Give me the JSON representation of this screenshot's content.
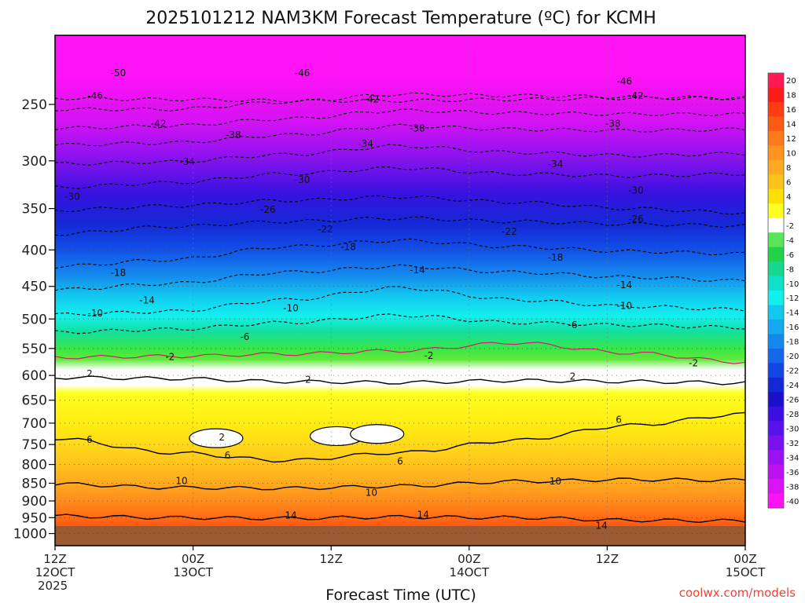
{
  "chart_data": {
    "type": "heatmap",
    "title": "2025101212 NAM3KM Forecast Temperature (ºC) for KCMH",
    "xlabel": "Forecast Time (UTC)",
    "ylabel": "",
    "credit": "coolwx.com/models",
    "y_scale": "log-pressure (hPa)",
    "ylim": [
      1040,
      200
    ],
    "xlim_hours": [
      0,
      60
    ],
    "y_ticks": [
      250,
      300,
      350,
      400,
      450,
      500,
      550,
      600,
      650,
      700,
      750,
      800,
      850,
      900,
      950,
      1000
    ],
    "x_ticks": [
      {
        "hour": 0,
        "line1": "12Z",
        "line2": "12OCT",
        "line3": "2025"
      },
      {
        "hour": 12,
        "line1": "00Z",
        "line2": "13OCT",
        "line3": ""
      },
      {
        "hour": 24,
        "line1": "12Z",
        "line2": "",
        "line3": ""
      },
      {
        "hour": 36,
        "line1": "00Z",
        "line2": "14OCT",
        "line3": ""
      },
      {
        "hour": 48,
        "line1": "12Z",
        "line2": "",
        "line3": ""
      },
      {
        "hour": 60,
        "line1": "00Z",
        "line2": "15OCT",
        "line3": ""
      }
    ],
    "colorbar": {
      "labels": [
        "20",
        "18",
        "16",
        "14",
        "12",
        "10",
        "8",
        "6",
        "4",
        "2",
        "-2",
        "-4",
        "-6",
        "-8",
        "-10",
        "-12",
        "-14",
        "-16",
        "-18",
        "-20",
        "-22",
        "-24",
        "-26",
        "-28",
        "-30",
        "-32",
        "-34",
        "-36",
        "-38",
        "-40"
      ],
      "colors": [
        "#ff1a55",
        "#ff1a1a",
        "#ff3d12",
        "#ff5a14",
        "#ff7a1a",
        "#ff951f",
        "#ffaa22",
        "#ffc21a",
        "#ffe000",
        "#ffff22",
        "#ffffff",
        "#5ae65a",
        "#22d24a",
        "#15d890",
        "#10e0c8",
        "#12f0ee",
        "#12c8f0",
        "#14a8f0",
        "#1488ee",
        "#1466ea",
        "#1046e6",
        "#1428d6",
        "#1a10cc",
        "#3a10e2",
        "#5812ee",
        "#7a12f0",
        "#9a12f2",
        "#bc12f2",
        "#dc12f4",
        "#ff12f6"
      ]
    },
    "series": [
      {
        "name": "-50 isotherm",
        "level": -50,
        "values": [
          245,
          246,
          247,
          247,
          246,
          245,
          245
        ]
      },
      {
        "name": "-46 isotherm",
        "level": -46,
        "values": [
          254,
          254,
          248,
          242,
          243,
          244,
          245
        ]
      },
      {
        "name": "-42 isotherm",
        "level": -42,
        "values": [
          270,
          268,
          262,
          255,
          257,
          258,
          258
        ]
      },
      {
        "name": "-38 isotherm",
        "level": -38,
        "values": [
          285,
          283,
          276,
          268,
          271,
          272,
          271
        ]
      },
      {
        "name": "-34 isotherm",
        "level": -34,
        "values": [
          303,
          301,
          294,
          286,
          292,
          295,
          293
        ]
      },
      {
        "name": "-30 isotherm",
        "level": -30,
        "values": [
          327,
          322,
          313,
          307,
          313,
          315,
          313
        ]
      },
      {
        "name": "-26 isotherm",
        "level": -26,
        "values": [
          352,
          347,
          341,
          337,
          343,
          350,
          355
        ]
      },
      {
        "name": "-22 isotherm",
        "level": -22,
        "values": [
          380,
          371,
          365,
          361,
          365,
          368,
          370
        ]
      },
      {
        "name": "-18 isotherm",
        "level": -18,
        "values": [
          422,
          413,
          396,
          388,
          396,
          402,
          405
        ]
      },
      {
        "name": "-14 isotherm",
        "level": -14,
        "values": [
          455,
          446,
          430,
          422,
          430,
          437,
          442
        ]
      },
      {
        "name": "-10 isotherm",
        "level": -10,
        "values": [
          493,
          488,
          470,
          452,
          470,
          480,
          485
        ]
      },
      {
        "name": "-6 isotherm",
        "level": -6,
        "values": [
          522,
          517,
          506,
          494,
          506,
          510,
          514
        ]
      },
      {
        "name": "-2 isotherm",
        "level": -2,
        "values": [
          566,
          564,
          560,
          554,
          540,
          558,
          575
        ]
      },
      {
        "name": "2 isotherm",
        "level": 2,
        "values": [
          604,
          606,
          612,
          614,
          610,
          612,
          615
        ]
      },
      {
        "name": "6 isotherm",
        "level": 6,
        "values": [
          735,
          770,
          790,
          770,
          740,
          705,
          680
        ]
      },
      {
        "name": "10 isotherm",
        "level": 10,
        "values": [
          852,
          862,
          864,
          858,
          845,
          840,
          842
        ]
      },
      {
        "name": "14 isotherm",
        "level": 14,
        "values": [
          945,
          950,
          952,
          948,
          950,
          958,
          960
        ]
      }
    ],
    "contour_labels": [
      {
        "text": "-50",
        "hour": 5.5,
        "pressure": 226
      },
      {
        "text": "-46",
        "hour": 21.5,
        "pressure": 226
      },
      {
        "text": "-46",
        "hour": 49.5,
        "pressure": 232
      },
      {
        "text": "-46",
        "hour": 3.5,
        "pressure": 243
      },
      {
        "text": "-42",
        "hour": 27.5,
        "pressure": 246
      },
      {
        "text": "-42",
        "hour": 50.5,
        "pressure": 243
      },
      {
        "text": "-42",
        "hour": 9,
        "pressure": 266
      },
      {
        "text": "-38",
        "hour": 15.5,
        "pressure": 276
      },
      {
        "text": "-38",
        "hour": 31.5,
        "pressure": 270
      },
      {
        "text": "-38",
        "hour": 48.5,
        "pressure": 266
      },
      {
        "text": "-34",
        "hour": 11.5,
        "pressure": 301
      },
      {
        "text": "-34",
        "hour": 27,
        "pressure": 284
      },
      {
        "text": "-34",
        "hour": 43.5,
        "pressure": 303
      },
      {
        "text": "-30",
        "hour": 21.5,
        "pressure": 319
      },
      {
        "text": "-30",
        "hour": 50.5,
        "pressure": 330
      },
      {
        "text": "-30",
        "hour": 1.5,
        "pressure": 337
      },
      {
        "text": "-26",
        "hour": 18.5,
        "pressure": 351
      },
      {
        "text": "-26",
        "hour": 50.5,
        "pressure": 362
      },
      {
        "text": "-22",
        "hour": 23.5,
        "pressure": 374
      },
      {
        "text": "-22",
        "hour": 39.5,
        "pressure": 377
      },
      {
        "text": "-18",
        "hour": 25.5,
        "pressure": 396
      },
      {
        "text": "-18",
        "hour": 43.5,
        "pressure": 410
      },
      {
        "text": "-18",
        "hour": 5.5,
        "pressure": 431
      },
      {
        "text": "-14",
        "hour": 31.5,
        "pressure": 427
      },
      {
        "text": "-14",
        "hour": 49.5,
        "pressure": 448
      },
      {
        "text": "-14",
        "hour": 8,
        "pressure": 471
      },
      {
        "text": "-10",
        "hour": 20.5,
        "pressure": 483
      },
      {
        "text": "-10",
        "hour": 49.5,
        "pressure": 479
      },
      {
        "text": "-10",
        "hour": 3.5,
        "pressure": 491
      },
      {
        "text": "-6",
        "hour": 16.5,
        "pressure": 530
      },
      {
        "text": "-6",
        "hour": 45,
        "pressure": 510
      },
      {
        "text": "-2",
        "hour": 10,
        "pressure": 565
      },
      {
        "text": "-2",
        "hour": 32.5,
        "pressure": 563
      },
      {
        "text": "-2",
        "hour": 55.5,
        "pressure": 577
      },
      {
        "text": "2",
        "hour": 3,
        "pressure": 597
      },
      {
        "text": "2",
        "hour": 22,
        "pressure": 608
      },
      {
        "text": "2",
        "hour": 45,
        "pressure": 602
      },
      {
        "text": "2",
        "hour": 14.5,
        "pressure": 733
      },
      {
        "text": "6",
        "hour": 3,
        "pressure": 738
      },
      {
        "text": "6",
        "hour": 15,
        "pressure": 777
      },
      {
        "text": "6",
        "hour": 30,
        "pressure": 792
      },
      {
        "text": "6",
        "hour": 49,
        "pressure": 692
      },
      {
        "text": "10",
        "hour": 11,
        "pressure": 844
      },
      {
        "text": "10",
        "hour": 27.5,
        "pressure": 876
      },
      {
        "text": "10",
        "hour": 43.5,
        "pressure": 845
      },
      {
        "text": "14",
        "hour": 20.5,
        "pressure": 943
      },
      {
        "text": "14",
        "hour": 32,
        "pressure": 941
      },
      {
        "text": "14",
        "hour": 47.5,
        "pressure": 975
      }
    ],
    "white_blobs": [
      {
        "hour": 14,
        "pressure": 735
      },
      {
        "hour": 24.5,
        "pressure": 730
      },
      {
        "hour": 28,
        "pressure": 725
      }
    ],
    "grid": true
  }
}
